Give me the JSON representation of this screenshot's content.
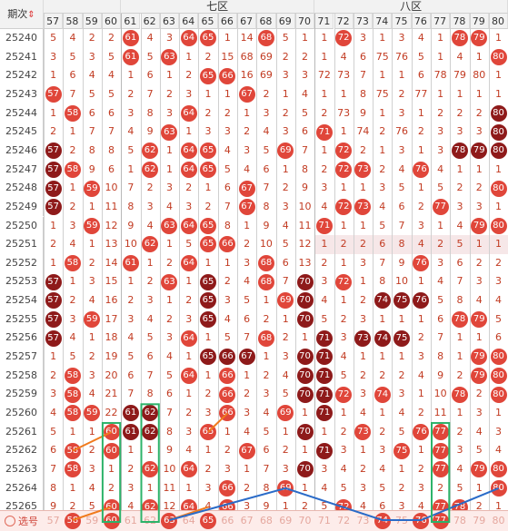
{
  "header": {
    "period_label": "期次",
    "sort_icon": "sort-arrows-icon",
    "zones": [
      {
        "label": "七区",
        "first": 61,
        "last": 70
      },
      {
        "label": "八区",
        "first": 71,
        "last": 80
      }
    ],
    "columns": [
      57,
      58,
      59,
      60,
      61,
      62,
      63,
      64,
      65,
      66,
      67,
      68,
      69,
      70,
      71,
      72,
      73,
      74,
      75,
      76,
      77,
      78,
      79,
      80
    ]
  },
  "colors": {
    "ball": "#e0463a",
    "ball_dark": "#8e1a1a",
    "text": "#c23b22",
    "header_bg": "#f2f2f2",
    "highlight_row": "#f6e7e8",
    "footer_bg": "#fdecea",
    "line_orange": "#f07a1c",
    "line_blue": "#2a6bc8",
    "box_green": "#2db36a"
  },
  "rows": [
    {
      "period": "25240",
      "cells": [
        "5",
        "4",
        "2",
        "2",
        "61",
        "4",
        "3",
        "64",
        "65",
        "1",
        "14",
        "68",
        "5",
        "1",
        "1",
        "72",
        "3",
        "1",
        "3",
        "4",
        "1",
        "78",
        "79",
        "1"
      ]
    },
    {
      "period": "25241",
      "cells": [
        "3",
        "5",
        "3",
        "5",
        "61",
        "5",
        "63",
        "1",
        "2",
        "15",
        "68",
        "69",
        "2",
        "2",
        "1",
        "4",
        "6",
        "75",
        "76",
        "5",
        "1",
        "4",
        "1",
        "80"
      ]
    },
    {
      "period": "25242",
      "cells": [
        "1",
        "6",
        "4",
        "4",
        "1",
        "6",
        "1",
        "2",
        "65",
        "66",
        "16",
        "69",
        "3",
        "3",
        "72",
        "73",
        "7",
        "1",
        "1",
        "6",
        "78",
        "79",
        "80",
        "1"
      ]
    },
    {
      "period": "25243",
      "cells": [
        "57",
        "7",
        "5",
        "5",
        "2",
        "7",
        "2",
        "3",
        "1",
        "1",
        "67",
        "2",
        "1",
        "4",
        "1",
        "1",
        "8",
        "75",
        "2",
        "77",
        "1",
        "1",
        "1",
        "1"
      ]
    },
    {
      "period": "25244",
      "cells": [
        "1",
        "58",
        "6",
        "6",
        "3",
        "8",
        "3",
        "64",
        "2",
        "2",
        "1",
        "3",
        "2",
        "5",
        "2",
        "73",
        "9",
        "1",
        "3",
        "1",
        "2",
        "2",
        "2",
        "80"
      ]
    },
    {
      "period": "25245",
      "cells": [
        "2",
        "1",
        "7",
        "7",
        "4",
        "9",
        "63",
        "1",
        "3",
        "3",
        "2",
        "4",
        "3",
        "6",
        "71",
        "1",
        "74",
        "2",
        "76",
        "2",
        "3",
        "3",
        "3",
        "80"
      ]
    },
    {
      "period": "25246",
      "cells": [
        "57",
        "2",
        "8",
        "8",
        "5",
        "62",
        "1",
        "64",
        "65",
        "4",
        "3",
        "5",
        "69",
        "7",
        "1",
        "72",
        "2",
        "1",
        "3",
        "1",
        "3",
        "78",
        "79",
        "80"
      ]
    },
    {
      "period": "25247",
      "cells": [
        "57",
        "58",
        "9",
        "6",
        "1",
        "62",
        "1",
        "64",
        "65",
        "5",
        "4",
        "6",
        "1",
        "8",
        "2",
        "72",
        "73",
        "2",
        "4",
        "76",
        "4",
        "1",
        "1",
        "1"
      ]
    },
    {
      "period": "25248",
      "cells": [
        "57",
        "1",
        "59",
        "10",
        "7",
        "2",
        "3",
        "2",
        "1",
        "6",
        "67",
        "7",
        "2",
        "9",
        "3",
        "1",
        "1",
        "3",
        "5",
        "1",
        "5",
        "2",
        "2",
        "80"
      ]
    },
    {
      "period": "25249",
      "cells": [
        "57",
        "2",
        "1",
        "11",
        "8",
        "3",
        "4",
        "3",
        "2",
        "7",
        "67",
        "8",
        "3",
        "10",
        "4",
        "72",
        "73",
        "4",
        "6",
        "2",
        "77",
        "3",
        "3",
        "1"
      ]
    },
    {
      "period": "25250",
      "cells": [
        "1",
        "3",
        "59",
        "12",
        "9",
        "4",
        "63",
        "64",
        "65",
        "8",
        "1",
        "9",
        "4",
        "11",
        "71",
        "1",
        "1",
        "5",
        "7",
        "3",
        "1",
        "4",
        "79",
        "80"
      ]
    },
    {
      "period": "25251",
      "cells": [
        "2",
        "4",
        "1",
        "13",
        "10",
        "62",
        "1",
        "5",
        "65",
        "66",
        "2",
        "10",
        "5",
        "12",
        "1",
        "2",
        "2",
        "6",
        "8",
        "4",
        "2",
        "5",
        "1",
        "1"
      ]
    },
    {
      "period": "25252",
      "cells": [
        "1",
        "58",
        "2",
        "14",
        "61",
        "1",
        "2",
        "64",
        "1",
        "1",
        "3",
        "68",
        "6",
        "13",
        "2",
        "1",
        "3",
        "7",
        "9",
        "76",
        "3",
        "6",
        "2",
        "2"
      ]
    },
    {
      "period": "25253",
      "cells": [
        "57",
        "1",
        "3",
        "15",
        "1",
        "2",
        "63",
        "1",
        "65",
        "2",
        "4",
        "68",
        "7",
        "70",
        "3",
        "72",
        "1",
        "8",
        "10",
        "1",
        "4",
        "7",
        "3",
        "3"
      ]
    },
    {
      "period": "25254",
      "cells": [
        "57",
        "2",
        "4",
        "16",
        "2",
        "3",
        "1",
        "2",
        "65",
        "3",
        "5",
        "1",
        "69",
        "70",
        "4",
        "1",
        "2",
        "74",
        "75",
        "76",
        "5",
        "8",
        "4",
        "4"
      ]
    },
    {
      "period": "25255",
      "cells": [
        "57",
        "3",
        "59",
        "17",
        "3",
        "4",
        "2",
        "3",
        "65",
        "4",
        "6",
        "2",
        "1",
        "70",
        "5",
        "2",
        "3",
        "1",
        "1",
        "1",
        "6",
        "78",
        "79",
        "5"
      ]
    },
    {
      "period": "25256",
      "cells": [
        "57",
        "4",
        "1",
        "18",
        "4",
        "5",
        "3",
        "64",
        "1",
        "5",
        "7",
        "68",
        "2",
        "1",
        "71",
        "3",
        "73",
        "74",
        "75",
        "2",
        "7",
        "1",
        "1",
        "6"
      ]
    },
    {
      "period": "25257",
      "cells": [
        "1",
        "5",
        "2",
        "19",
        "5",
        "6",
        "4",
        "1",
        "65",
        "66",
        "67",
        "1",
        "3",
        "70",
        "71",
        "4",
        "1",
        "1",
        "1",
        "3",
        "8",
        "1",
        "79",
        "80"
      ]
    },
    {
      "period": "25258",
      "cells": [
        "2",
        "58",
        "3",
        "20",
        "6",
        "7",
        "5",
        "64",
        "1",
        "66",
        "1",
        "2",
        "4",
        "70",
        "71",
        "5",
        "2",
        "2",
        "2",
        "4",
        "9",
        "2",
        "79",
        "80"
      ]
    },
    {
      "period": "25259",
      "cells": [
        "3",
        "58",
        "4",
        "21",
        "7",
        "8",
        "6",
        "1",
        "2",
        "66",
        "2",
        "3",
        "5",
        "70",
        "71",
        "72",
        "3",
        "74",
        "3",
        "1",
        "10",
        "78",
        "2",
        "80"
      ]
    },
    {
      "period": "25260",
      "cells": [
        "4",
        "58",
        "59",
        "22",
        "61",
        "62",
        "7",
        "2",
        "3",
        "66",
        "3",
        "4",
        "69",
        "1",
        "71",
        "1",
        "4",
        "1",
        "4",
        "2",
        "11",
        "1",
        "3",
        "1"
      ]
    },
    {
      "period": "25261",
      "cells": [
        "5",
        "1",
        "1",
        "60",
        "61",
        "62",
        "8",
        "3",
        "65",
        "1",
        "4",
        "5",
        "1",
        "70",
        "1",
        "2",
        "73",
        "2",
        "5",
        "76",
        "77",
        "2",
        "4",
        "3"
      ]
    },
    {
      "period": "25262",
      "cells": [
        "6",
        "58",
        "2",
        "60",
        "1",
        "1",
        "9",
        "4",
        "1",
        "2",
        "67",
        "6",
        "2",
        "1",
        "71",
        "3",
        "1",
        "3",
        "75",
        "1",
        "77",
        "3",
        "5",
        "4"
      ]
    },
    {
      "period": "25263",
      "cells": [
        "7",
        "58",
        "3",
        "1",
        "2",
        "62",
        "10",
        "64",
        "2",
        "3",
        "1",
        "7",
        "3",
        "70",
        "3",
        "4",
        "2",
        "4",
        "1",
        "2",
        "77",
        "4",
        "79",
        "80"
      ]
    },
    {
      "period": "25264",
      "cells": [
        "8",
        "1",
        "4",
        "2",
        "3",
        "1",
        "11",
        "1",
        "3",
        "66",
        "2",
        "8",
        "69",
        "1",
        "4",
        "5",
        "3",
        "5",
        "2",
        "3",
        "2",
        "5",
        "1",
        "80"
      ]
    },
    {
      "period": "25265",
      "cells": [
        "9",
        "2",
        "5",
        "60",
        "4",
        "62",
        "12",
        "64",
        "4",
        "66",
        "3",
        "9",
        "1",
        "2",
        "5",
        "72",
        "4",
        "6",
        "3",
        "4",
        "77",
        "78",
        "2",
        "1"
      ]
    }
  ],
  "footer": {
    "label": "选号",
    "radio_icon": "radio-circle-icon",
    "cells": [
      "57",
      "58",
      "59",
      "60",
      "61",
      "62",
      "63",
      "64",
      "65",
      "66",
      "67",
      "68",
      "69",
      "70",
      "71",
      "72",
      "73",
      "74",
      "75",
      "76",
      "77",
      "78",
      "79",
      "80"
    ],
    "selected": [
      "58",
      "60",
      "63",
      "65",
      "74",
      "76",
      "77"
    ]
  },
  "balls": {
    "dark": [
      "25246:57",
      "25247:57",
      "25248:57",
      "25249:57",
      "25253:57",
      "25254:57",
      "25255:57",
      "25256:57",
      "25242:78",
      "25242:79",
      "25246:78",
      "25246:79",
      "25253:65",
      "25254:65",
      "25255:65",
      "25257:65",
      "25257:66",
      "25257:67",
      "25253:70",
      "25254:70",
      "25255:70",
      "25257:70",
      "25258:70",
      "25259:70",
      "25261:70",
      "25263:70",
      "25256:71",
      "25257:71",
      "25258:71",
      "25259:71",
      "25260:71",
      "25262:71",
      "25256:73",
      "25256:74",
      "25256:75",
      "25254:74",
      "25254:75",
      "25254:76",
      "25255:76",
      "25261:61",
      "25261:62",
      "25260:61",
      "25260:62",
      "25245:80",
      "25246:80",
      "25244:80",
      "25242:80"
    ]
  }
}
